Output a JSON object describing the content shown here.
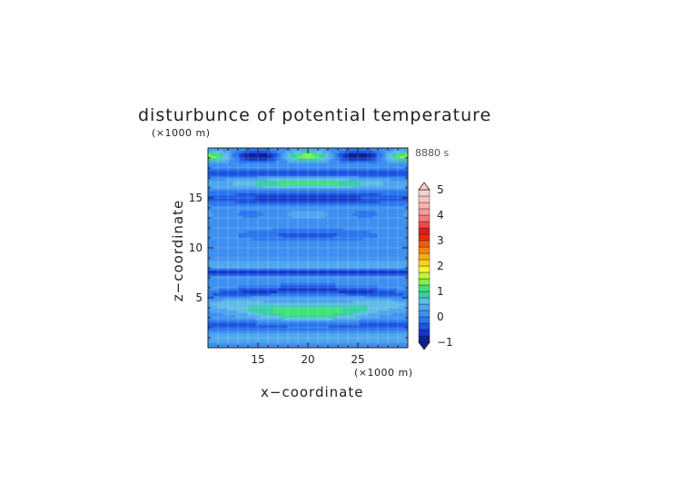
{
  "chart_data": {
    "type": "heatmap",
    "title": "disturbunce of potential temperature",
    "xlabel": "x−coordinate",
    "ylabel": "z−coordinate",
    "x_unit": "(×1000 m)",
    "y_unit": "(×1000 m)",
    "time_label": "8880 s",
    "xlim": [
      10,
      30
    ],
    "ylim": [
      0,
      20
    ],
    "x_ticks": [
      15,
      20,
      25
    ],
    "y_ticks": [
      5,
      10,
      15
    ],
    "colorbar": {
      "min": -1,
      "max": 5,
      "step": 0.25,
      "tick_values": [
        -1,
        0,
        1,
        2,
        3,
        4,
        5
      ],
      "tick_labels": [
        "−1",
        "0",
        "1",
        "2",
        "3",
        "4",
        "5"
      ],
      "colors": [
        "#0c1f9a",
        "#1535c9",
        "#1c55e0",
        "#2a76ee",
        "#3d8ff0",
        "#4fa6ee",
        "#5fbde6",
        "#36d0a4",
        "#44e07a",
        "#7ef04e",
        "#c3f33a",
        "#f6f52c",
        "#fad21e",
        "#f9ac16",
        "#f68412",
        "#f35c10",
        "#ea2a10",
        "#dc1d1d",
        "#ee4a4a",
        "#f57a7a",
        "#f69a9a",
        "#f7b2b2",
        "#f7c4c4",
        "#f6d0d0"
      ]
    },
    "grid": true,
    "field_description": "horizontal banded wave pattern"
  }
}
